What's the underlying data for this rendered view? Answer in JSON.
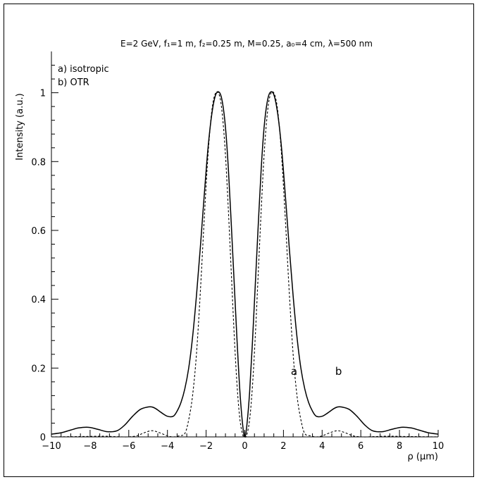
{
  "chart_data": {
    "type": "line",
    "title": "E=2 GeV, f₁=1 m, f₂=0.25 m, M=0.25, a₀=4 cm, λ=500 nm",
    "xlabel": "ρ (μm)",
    "ylabel": "Intensity (a.u.)",
    "xlim": [
      -10,
      10
    ],
    "ylim": [
      0,
      1.12
    ],
    "x_ticks": [
      -10,
      -8,
      -6,
      -4,
      -2,
      0,
      2,
      4,
      6,
      8,
      10
    ],
    "x_tick_labels": [
      "−10",
      "−8",
      "−6",
      "−4",
      "−2",
      "0",
      "2",
      "4",
      "6",
      "8",
      "10"
    ],
    "y_ticks": [
      0,
      0.2,
      0.4,
      0.6,
      0.8,
      1
    ],
    "y_tick_labels": [
      "0",
      "0.2",
      "0.4",
      "0.6",
      "0.8",
      "1"
    ],
    "grid": false,
    "legend": {
      "placement": "top-left",
      "entries": [
        "a) isotropic",
        "b) OTR"
      ]
    },
    "annotations": [
      {
        "text": "a",
        "x": 2.55,
        "y": 0.18
      },
      {
        "text": "b",
        "x": 4.85,
        "y": 0.18
      }
    ],
    "series": [
      {
        "name": "a) isotropic",
        "style": "dashed",
        "x": [
          -10,
          -8.5,
          -7.4,
          -6.8,
          -6.1,
          -5.6,
          -5.2,
          -4.8,
          -4.4,
          -4.0,
          -3.7,
          -3.4,
          -3.1,
          -2.9,
          -2.7,
          -2.5,
          -2.3,
          -2.1,
          -1.9,
          -1.7,
          -1.5,
          -1.3,
          -1.15,
          -1.0,
          -0.85,
          -0.7,
          -0.55,
          -0.4,
          -0.25,
          -0.1,
          0,
          0.1,
          0.25,
          0.4,
          0.55,
          0.7,
          0.85,
          1.0,
          1.15,
          1.3,
          1.5,
          1.7,
          1.9,
          2.1,
          2.3,
          2.5,
          2.7,
          2.9,
          3.1,
          3.4,
          3.7,
          4.0,
          4.4,
          4.8,
          5.2,
          5.6,
          6.1,
          6.8,
          7.4,
          8.5,
          10
        ],
        "values": [
          0,
          0.001,
          0.002,
          0.001,
          0.0,
          0.003,
          0.012,
          0.018,
          0.012,
          0.003,
          0.0,
          0.003,
          0.01,
          0.05,
          0.12,
          0.24,
          0.42,
          0.63,
          0.82,
          0.95,
          1.0,
          0.99,
          0.93,
          0.82,
          0.66,
          0.48,
          0.3,
          0.15,
          0.05,
          0.005,
          0,
          0.005,
          0.05,
          0.15,
          0.3,
          0.48,
          0.66,
          0.82,
          0.93,
          0.99,
          1.0,
          0.95,
          0.82,
          0.63,
          0.42,
          0.24,
          0.12,
          0.05,
          0.01,
          0.003,
          0.0,
          0.003,
          0.012,
          0.018,
          0.012,
          0.003,
          0.0,
          0.001,
          0.002,
          0.001,
          0
        ]
      },
      {
        "name": "b) OTR",
        "style": "solid",
        "x": [
          -10,
          -9.5,
          -9,
          -8.6,
          -8.1,
          -7.6,
          -7.1,
          -6.6,
          -6.2,
          -5.8,
          -5.4,
          -5.0,
          -4.8,
          -4.6,
          -4.3,
          -4.0,
          -3.7,
          -3.5,
          -3.3,
          -3.1,
          -2.9,
          -2.7,
          -2.5,
          -2.3,
          -2.1,
          -1.9,
          -1.7,
          -1.5,
          -1.3,
          -1.15,
          -1.0,
          -0.85,
          -0.7,
          -0.55,
          -0.4,
          -0.25,
          -0.1,
          0,
          0.1,
          0.25,
          0.4,
          0.55,
          0.7,
          0.85,
          1.0,
          1.15,
          1.3,
          1.5,
          1.7,
          1.9,
          2.1,
          2.3,
          2.5,
          2.7,
          2.9,
          3.1,
          3.3,
          3.5,
          3.7,
          4.0,
          4.3,
          4.6,
          4.8,
          5.0,
          5.4,
          5.8,
          6.2,
          6.6,
          7.1,
          7.6,
          8.1,
          8.6,
          9,
          9.5,
          10
        ],
        "values": [
          0.008,
          0.012,
          0.02,
          0.026,
          0.028,
          0.022,
          0.015,
          0.018,
          0.035,
          0.06,
          0.08,
          0.087,
          0.087,
          0.082,
          0.07,
          0.06,
          0.06,
          0.075,
          0.1,
          0.14,
          0.2,
          0.29,
          0.41,
          0.55,
          0.7,
          0.84,
          0.94,
          0.995,
          1.0,
          0.97,
          0.9,
          0.78,
          0.62,
          0.45,
          0.28,
          0.13,
          0.03,
          0,
          0.03,
          0.13,
          0.28,
          0.45,
          0.62,
          0.78,
          0.9,
          0.97,
          1.0,
          0.995,
          0.94,
          0.84,
          0.7,
          0.55,
          0.41,
          0.29,
          0.2,
          0.14,
          0.1,
          0.075,
          0.06,
          0.06,
          0.07,
          0.082,
          0.087,
          0.087,
          0.08,
          0.06,
          0.035,
          0.018,
          0.015,
          0.022,
          0.028,
          0.026,
          0.02,
          0.012,
          0.008
        ]
      }
    ]
  }
}
